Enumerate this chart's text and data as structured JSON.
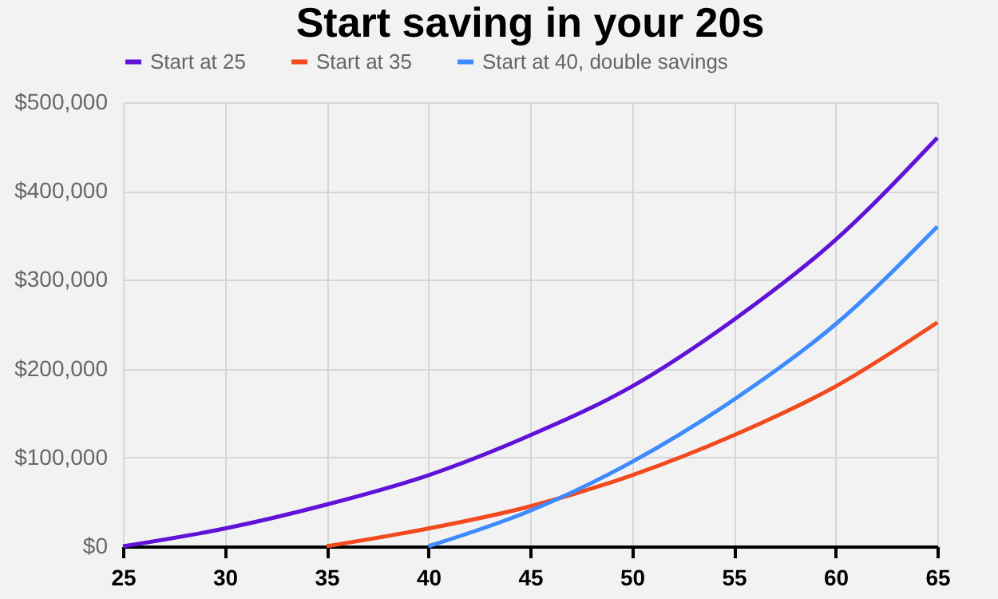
{
  "chart_data": {
    "type": "line",
    "title": "Start saving in your 20s",
    "legend": "top",
    "grid": true,
    "line_style": "solid",
    "marker": "none",
    "xlim": [
      25,
      65
    ],
    "xticks": [
      25,
      30,
      35,
      40,
      45,
      50,
      55,
      60,
      65
    ],
    "ylim": [
      0,
      500000
    ],
    "yticks": [
      {
        "value": 0,
        "label": "$0"
      },
      {
        "value": 100000,
        "label": "$100,000"
      },
      {
        "value": 200000,
        "label": "$200,000"
      },
      {
        "value": 300000,
        "label": "$300,000"
      },
      {
        "value": 400000,
        "label": "$400,000"
      },
      {
        "value": 500000,
        "label": "$500,000"
      }
    ],
    "series": [
      {
        "name": "Start at 25",
        "color": "#6012d8",
        "x": [
          25,
          30,
          35,
          40,
          45,
          50,
          55,
          60,
          65
        ],
        "values": [
          0,
          20000,
          47000,
          80000,
          125000,
          180000,
          255000,
          345000,
          460000
        ]
      },
      {
        "name": "Start at 35",
        "color": "#f24a1e",
        "x": [
          35,
          40,
          45,
          50,
          55,
          60,
          65
        ],
        "values": [
          0,
          20000,
          45000,
          80000,
          125000,
          180000,
          252000
        ]
      },
      {
        "name": "Start at 40, double savings",
        "color": "#3d8bfd",
        "x": [
          40,
          45,
          50,
          55,
          60,
          65
        ],
        "values": [
          0,
          40000,
          95000,
          165000,
          250000,
          360000
        ]
      }
    ]
  }
}
